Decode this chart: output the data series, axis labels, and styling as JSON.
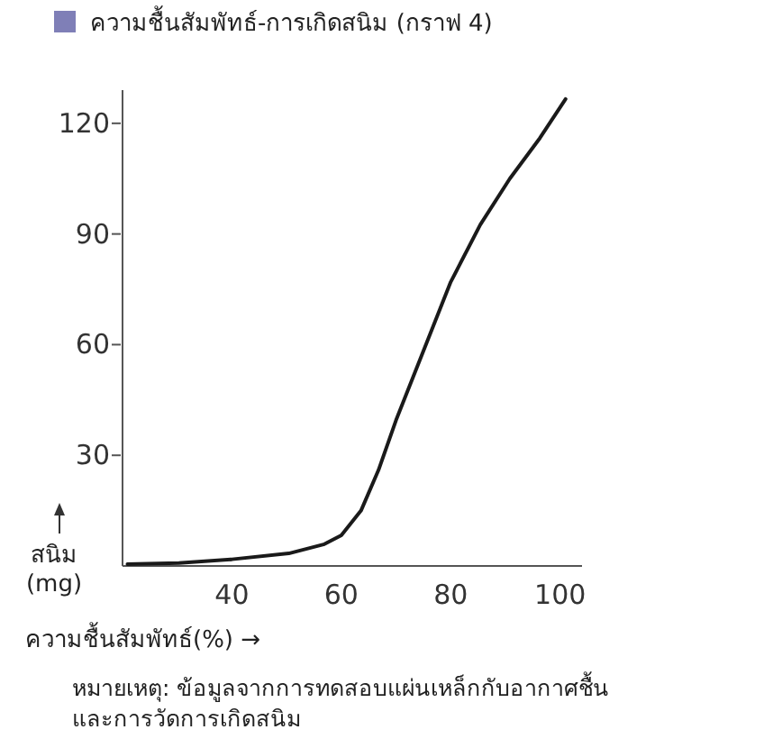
{
  "chart_data": {
    "type": "line",
    "title": "ความชื้นสัมพัทธ์-การเกิดสนิม (กราฟ 4)",
    "xlabel": "ความชื้นสัมพัทธ์(%) →",
    "ylabel": "สนิม (mg)",
    "annotations": [
      "หมายเหตุ: ข้อมูลจากการทดสอบแผ่นเหล็กกับอากาศชื้น และการวัดการเกิดสนิม"
    ],
    "xlim": [
      20,
      104
    ],
    "xticks": [
      40,
      60,
      80,
      100
    ],
    "ylim": [
      0,
      129
    ],
    "yticks": [
      30,
      60,
      90,
      120
    ],
    "grid": false,
    "marker": "none",
    "line_style": "solid",
    "series": [
      {
        "color": "#1a1a1a",
        "x": [
          20.9,
          30.3,
          40,
          50.4,
          56.9,
          60,
          63.6,
          66.8,
          70,
          74.4,
          80,
          85.4,
          90.8,
          96.3,
          101
        ],
        "values": [
          0.5,
          0.8,
          1.8,
          3.4,
          5.9,
          8.3,
          15,
          26,
          39.5,
          56,
          77,
          92.5,
          105,
          116,
          126.6
        ]
      }
    ]
  }
}
